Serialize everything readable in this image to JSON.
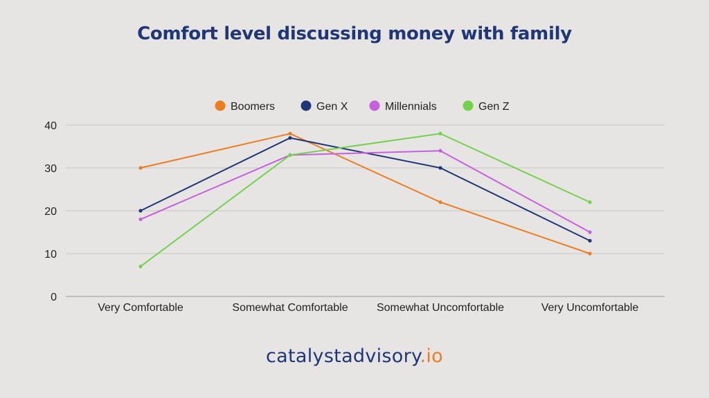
{
  "title": "Comfort level discussing money with family",
  "brand": {
    "main": "catalystadvisory",
    "tld": ".io"
  },
  "chart_data": {
    "type": "line",
    "categories": [
      "Very Comfortable",
      "Somewhat Comfortable",
      "Somewhat Uncomfortable",
      "Very Uncomfortable"
    ],
    "series": [
      {
        "name": "Boomers",
        "color": "#ef7d1e",
        "values": [
          30,
          38,
          22,
          10
        ]
      },
      {
        "name": "Gen X",
        "color": "#1f3678",
        "values": [
          20,
          37,
          30,
          13
        ]
      },
      {
        "name": "Millennials",
        "color": "#c65fe0",
        "values": [
          18,
          33,
          34,
          15
        ]
      },
      {
        "name": "Gen Z",
        "color": "#72d34a",
        "values": [
          7,
          33,
          38,
          22
        ]
      }
    ],
    "yticks": [
      0,
      10,
      20,
      30,
      40
    ],
    "ylim": [
      0,
      40
    ],
    "grid": true,
    "legend_position": "top-center"
  }
}
